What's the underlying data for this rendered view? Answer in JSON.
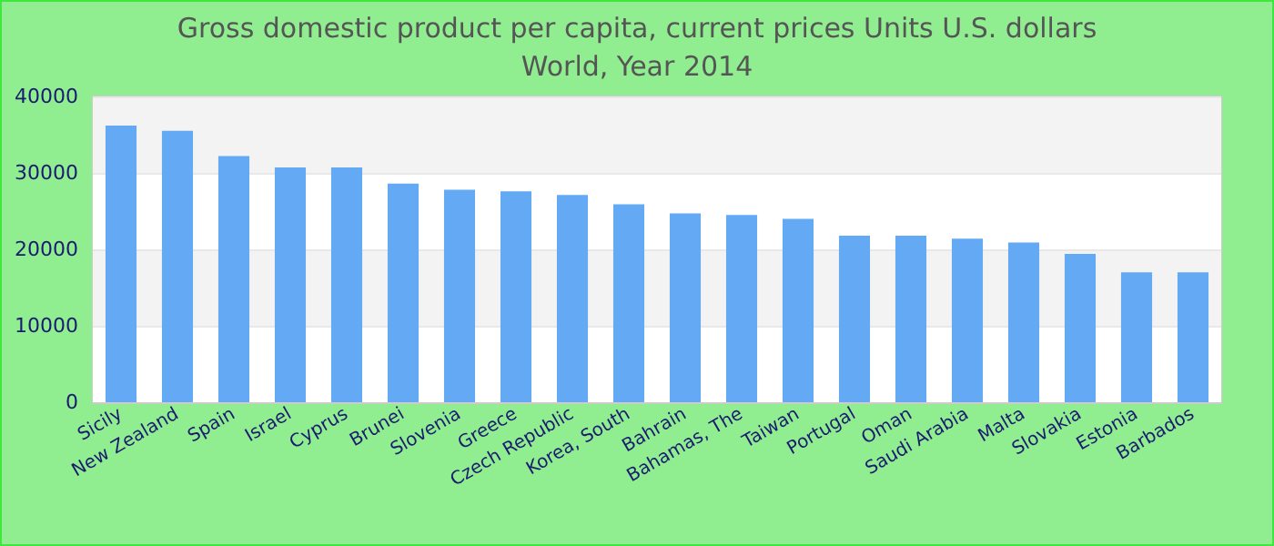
{
  "chart_data": {
    "type": "bar",
    "title": "Gross domestic product per capita, current prices Units U.S. dollars",
    "subtitle": "World, Year 2014",
    "categories": [
      "Sicily",
      "New Zealand",
      "Spain",
      "Israel",
      "Cyprus",
      "Brunei",
      "Slovenia",
      "Greece",
      "Czech Republic",
      "Korea, South",
      "Bahrain",
      "Bahamas, The",
      "Taiwan",
      "Portugal",
      "Oman",
      "Saudi Arabia",
      "Malta",
      "Slovakia",
      "Estonia",
      "Barbados"
    ],
    "values": [
      36200,
      35500,
      32200,
      30700,
      30700,
      28600,
      27800,
      27600,
      27100,
      25900,
      24700,
      24500,
      24000,
      21800,
      21800,
      21400,
      20900,
      19400,
      17000,
      17000
    ],
    "color": "#63a9f3",
    "ylim": [
      0,
      40000
    ],
    "yticks": [
      0,
      10000,
      20000,
      30000,
      40000
    ],
    "grid": "y"
  }
}
